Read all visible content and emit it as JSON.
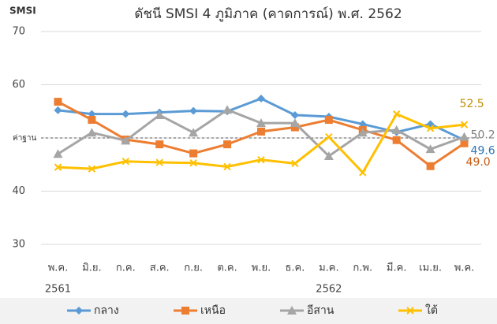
{
  "chart_data": {
    "type": "line",
    "title": "ดัชนี SMSI 4 ภูมิภาค (คาดการณ์) พ.ศ. 2562",
    "y_label": "SMSI",
    "categories": [
      "พ.ค.",
      "มิ.ย.",
      "ก.ค.",
      "ส.ค.",
      "ก.ย.",
      "ต.ค.",
      "พ.ย.",
      "ธ.ค.",
      "ม.ค.",
      "ก.พ.",
      "มี.ค.",
      "เม.ย.",
      "พ.ค."
    ],
    "year_labels": [
      {
        "index": 0,
        "label": "2561"
      },
      {
        "index": 8,
        "label": "2562"
      }
    ],
    "ylim": [
      30,
      70
    ],
    "yticks": [
      30,
      40,
      50,
      60,
      70
    ],
    "grid": true,
    "baseline": {
      "value": 50,
      "label": "ค่าฐาน"
    },
    "legend": "bottom",
    "series": [
      {
        "name": "กลาง",
        "color": "#5b9bd5",
        "marker": "diamond",
        "label_color": "#2e75b6",
        "values": [
          55.2,
          54.5,
          54.5,
          54.8,
          55.1,
          55.0,
          57.4,
          54.3,
          54.0,
          52.6,
          51.1,
          52.6,
          49.6
        ],
        "value_labels": [
          null,
          null,
          null,
          null,
          null,
          null,
          null,
          null,
          null,
          null,
          null,
          null,
          "49.6"
        ]
      },
      {
        "name": "เหนือ",
        "color": "#ed7d31",
        "marker": "square",
        "label_color": "#c55a11",
        "values": [
          56.8,
          53.4,
          49.7,
          48.8,
          47.1,
          48.8,
          51.2,
          52.0,
          53.4,
          51.5,
          49.6,
          44.7,
          49.0
        ],
        "value_labels": [
          null,
          null,
          null,
          null,
          null,
          null,
          null,
          null,
          null,
          null,
          null,
          null,
          "49.0"
        ]
      },
      {
        "name": "อีสาน",
        "color": "#a5a5a5",
        "marker": "triangle",
        "label_color": "#7f7f7f",
        "values": [
          47.0,
          51.0,
          49.5,
          54.3,
          51.0,
          55.3,
          52.8,
          52.8,
          46.6,
          51.0,
          51.5,
          47.9,
          50.2
        ],
        "value_labels": [
          null,
          null,
          null,
          null,
          null,
          null,
          null,
          null,
          null,
          null,
          null,
          null,
          "50.2"
        ]
      },
      {
        "name": "ใต้",
        "color": "#ffc000",
        "marker": "cross",
        "label_color": "#bf9000",
        "values": [
          44.5,
          44.2,
          45.6,
          45.4,
          45.3,
          44.6,
          45.9,
          45.2,
          50.2,
          43.5,
          54.5,
          51.8,
          52.5
        ],
        "value_labels": [
          null,
          null,
          null,
          null,
          null,
          null,
          null,
          null,
          null,
          null,
          null,
          null,
          "52.5"
        ]
      }
    ]
  }
}
